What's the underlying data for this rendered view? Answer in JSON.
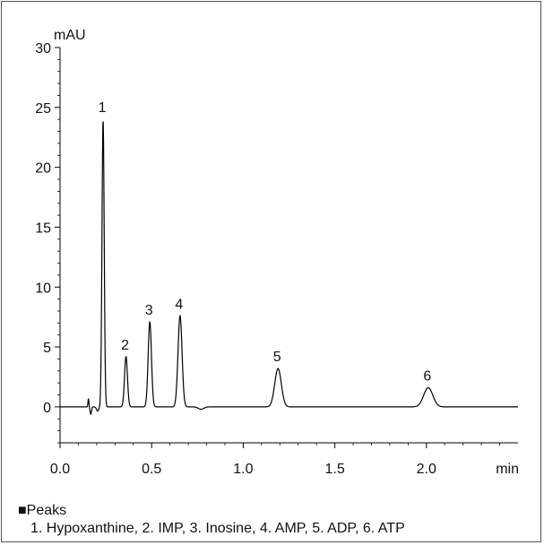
{
  "chart_data": {
    "type": "line",
    "title": "",
    "ylabel": "mAU",
    "xlabel": "min",
    "xlim": [
      0.0,
      2.5
    ],
    "ylim": [
      -3,
      30
    ],
    "x_ticks": [
      0.0,
      0.5,
      1.0,
      1.5,
      2.0
    ],
    "x_tick_labels": [
      "0.0",
      "0.5",
      "1.0",
      "1.5",
      "2.0"
    ],
    "y_ticks": [
      0,
      5,
      10,
      15,
      20,
      25,
      30
    ],
    "y_tick_labels": [
      "0",
      "5",
      "10",
      "15",
      "20",
      "25",
      "30"
    ],
    "grid": false,
    "peaks": [
      {
        "label": "1",
        "retention_time": 0.235,
        "height": 24.0
      },
      {
        "label": "2",
        "retention_time": 0.36,
        "height": 4.2
      },
      {
        "label": "3",
        "retention_time": 0.49,
        "height": 7.1
      },
      {
        "label": "4",
        "retention_time": 0.655,
        "height": 7.6
      },
      {
        "label": "5",
        "retention_time": 1.19,
        "height": 3.2
      },
      {
        "label": "6",
        "retention_time": 2.01,
        "height": 1.6
      }
    ],
    "legend": {
      "title": "■Peaks",
      "text": "1. Hypoxanthine, 2. IMP, 3. Inosine, 4. AMP, 5. ADP, 6. ATP"
    },
    "line_color": "#000000"
  }
}
